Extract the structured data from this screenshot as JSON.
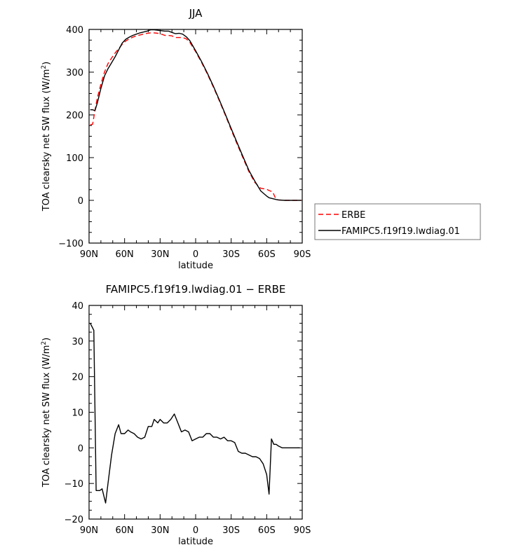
{
  "chart_data": [
    {
      "type": "line",
      "title": "JJA",
      "xlabel": "latitude",
      "ylabel": "TOA clearsky net SW flux (W/m²)",
      "xlim": [
        90,
        -90
      ],
      "ylim": [
        -100,
        400
      ],
      "xticks": [
        90,
        60,
        30,
        0,
        -30,
        -60,
        -90
      ],
      "xtick_labels": [
        "90N",
        "60N",
        "30N",
        "0",
        "30S",
        "60S",
        "90S"
      ],
      "yticks": [
        -100,
        0,
        100,
        200,
        300,
        400
      ],
      "ytick_labels": [
        "−100",
        "0",
        "100",
        "200",
        "300",
        "400"
      ],
      "legend_position": "outside-right",
      "series": [
        {
          "name": "ERBE",
          "color": "#ff0000",
          "style": "dashed",
          "x": [
            89,
            87,
            85,
            83,
            80,
            77,
            74,
            71,
            68,
            65,
            62,
            59,
            56,
            53,
            50,
            47,
            44,
            41,
            38,
            35,
            32,
            29,
            26,
            23,
            20,
            17,
            14,
            11,
            8,
            5,
            0,
            -5,
            -10,
            -15,
            -20,
            -25,
            -30,
            -35,
            -40,
            -45,
            -50,
            -55,
            -60,
            -62,
            -65,
            -68,
            -70,
            -75,
            -80,
            -85,
            -89
          ],
          "y": [
            177,
            178,
            210,
            240,
            272,
            300,
            320,
            333,
            345,
            355,
            365,
            373,
            378,
            382,
            385,
            387,
            389,
            391,
            392,
            392,
            391,
            389,
            386,
            386,
            385,
            381,
            381,
            381,
            378,
            370,
            348,
            323,
            295,
            265,
            233,
            200,
            165,
            132,
            99,
            67,
            42,
            28,
            26,
            23,
            20,
            2,
            1,
            0,
            0,
            0,
            0
          ]
        },
        {
          "name": "FAMIPC5.f19f19.lwdiag.01",
          "color": "#000000",
          "style": "solid",
          "x": [
            89,
            87,
            85,
            83,
            80,
            77,
            74,
            71,
            68,
            65,
            62,
            59,
            56,
            53,
            50,
            47,
            44,
            41,
            38,
            35,
            32,
            29,
            26,
            23,
            20,
            17,
            14,
            11,
            8,
            5,
            0,
            -5,
            -10,
            -15,
            -20,
            -25,
            -30,
            -35,
            -40,
            -45,
            -50,
            -55,
            -60,
            -62,
            -65,
            -68,
            -70,
            -75,
            -80,
            -85,
            -89
          ],
          "y": [
            212,
            212,
            210,
            228,
            262,
            291,
            308,
            322,
            336,
            352,
            368,
            377,
            382,
            386,
            389,
            392,
            394,
            396,
            399,
            399,
            398,
            397,
            396,
            396,
            393,
            390,
            391,
            389,
            383,
            374,
            350,
            325,
            297,
            267,
            235,
            202,
            168,
            135,
            102,
            70,
            45,
            22,
            10,
            6,
            4,
            2,
            1,
            0,
            0,
            0,
            0
          ]
        }
      ]
    },
    {
      "type": "line",
      "title": "FAMIPC5.f19f19.lwdiag.01 − ERBE",
      "xlabel": "latitude",
      "ylabel": "TOA clearsky net SW flux (W/m²)",
      "xlim": [
        90,
        -90
      ],
      "ylim": [
        -20,
        40
      ],
      "xticks": [
        90,
        60,
        30,
        0,
        -30,
        -60,
        -90
      ],
      "xtick_labels": [
        "90N",
        "60N",
        "30N",
        "0",
        "30S",
        "60S",
        "90S"
      ],
      "yticks": [
        -20,
        -10,
        0,
        10,
        20,
        30,
        40
      ],
      "ytick_labels": [
        "−20",
        "−10",
        "0",
        "10",
        "20",
        "30",
        "40"
      ],
      "series": [
        {
          "color": "#000000",
          "style": "solid",
          "x": [
            89,
            86,
            84,
            81,
            79,
            76,
            74,
            71,
            68,
            65,
            63,
            60,
            57,
            55,
            52,
            49,
            46,
            43,
            40,
            37,
            35,
            32,
            30,
            27,
            24,
            21,
            18,
            15,
            12,
            9,
            6,
            3,
            0,
            -3,
            -6,
            -9,
            -12,
            -15,
            -18,
            -21,
            -24,
            -27,
            -30,
            -33,
            -36,
            -39,
            -42,
            -45,
            -48,
            -51,
            -54,
            -57,
            -60,
            -62,
            -64,
            -66,
            -68,
            -70,
            -73,
            -76,
            -79,
            -82,
            -85,
            -88
          ],
          "y": [
            35,
            33,
            -12,
            -12,
            -11.5,
            -15.5,
            -10,
            -2,
            4,
            6.5,
            4,
            4,
            5,
            4.5,
            4,
            3,
            2.5,
            3,
            6,
            6,
            8,
            7,
            8,
            7,
            7,
            8,
            9.5,
            7,
            4.5,
            5,
            4.5,
            2,
            2.5,
            3,
            3,
            4,
            4,
            3,
            3,
            2.5,
            3,
            2,
            2,
            1.5,
            -1,
            -1.5,
            -1.5,
            -2,
            -2.5,
            -2.5,
            -3,
            -4.5,
            -7.5,
            -13,
            2.5,
            1,
            1,
            0.5,
            0,
            0,
            0,
            0,
            0,
            0
          ]
        }
      ]
    }
  ]
}
